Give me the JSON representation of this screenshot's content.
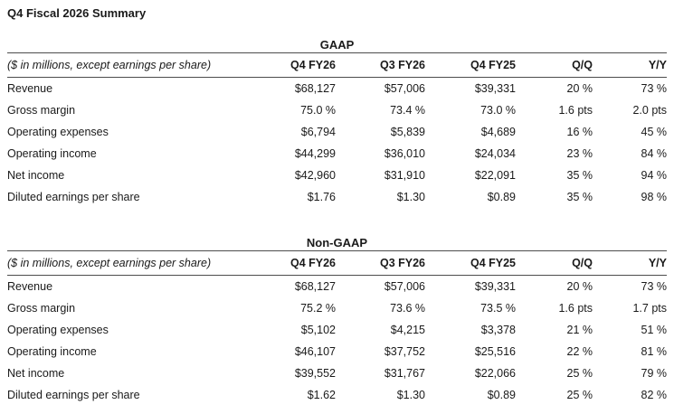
{
  "title": "Q4 Fiscal 2026 Summary",
  "colors": {
    "background": "#ffffff",
    "text": "#1a1a1a",
    "rule": "#4d4d4d"
  },
  "tables": [
    {
      "section": "GAAP",
      "caption": "($ in millions, except earnings per share)",
      "columns": [
        "Q4 FY26",
        "Q3 FY26",
        "Q4 FY25",
        "Q/Q",
        "Y/Y"
      ],
      "rows": [
        {
          "label": "Revenue",
          "values": [
            "$68,127",
            "$57,006",
            "$39,331",
            "20 %",
            "73 %"
          ]
        },
        {
          "label": "Gross margin",
          "values": [
            "75.0 %",
            "73.4 %",
            "73.0 %",
            "1.6 pts",
            "2.0 pts"
          ]
        },
        {
          "label": "Operating expenses",
          "values": [
            "$6,794",
            "$5,839",
            "$4,689",
            "16 %",
            "45 %"
          ]
        },
        {
          "label": "Operating income",
          "values": [
            "$44,299",
            "$36,010",
            "$24,034",
            "23 %",
            "84 %"
          ]
        },
        {
          "label": "Net income",
          "values": [
            "$42,960",
            "$31,910",
            "$22,091",
            "35 %",
            "94 %"
          ]
        },
        {
          "label": "Diluted earnings per share",
          "values": [
            "$1.76",
            "$1.30",
            "$0.89",
            "35 %",
            "98 %"
          ]
        }
      ]
    },
    {
      "section": "Non-GAAP",
      "caption": "($ in millions, except earnings per share)",
      "columns": [
        "Q4 FY26",
        "Q3 FY26",
        "Q4 FY25",
        "Q/Q",
        "Y/Y"
      ],
      "rows": [
        {
          "label": "Revenue",
          "values": [
            "$68,127",
            "$57,006",
            "$39,331",
            "20 %",
            "73 %"
          ]
        },
        {
          "label": "Gross margin",
          "values": [
            "75.2 %",
            "73.6 %",
            "73.5 %",
            "1.6 pts",
            "1.7 pts"
          ]
        },
        {
          "label": "Operating expenses",
          "values": [
            "$5,102",
            "$4,215",
            "$3,378",
            "21 %",
            "51 %"
          ]
        },
        {
          "label": "Operating income",
          "values": [
            "$46,107",
            "$37,752",
            "$25,516",
            "22 %",
            "81 %"
          ]
        },
        {
          "label": "Net income",
          "values": [
            "$39,552",
            "$31,767",
            "$22,066",
            "25 %",
            "79 %"
          ]
        },
        {
          "label": "Diluted earnings per share",
          "values": [
            "$1.62",
            "$1.30",
            "$0.89",
            "25 %",
            "82 %"
          ]
        }
      ]
    }
  ]
}
